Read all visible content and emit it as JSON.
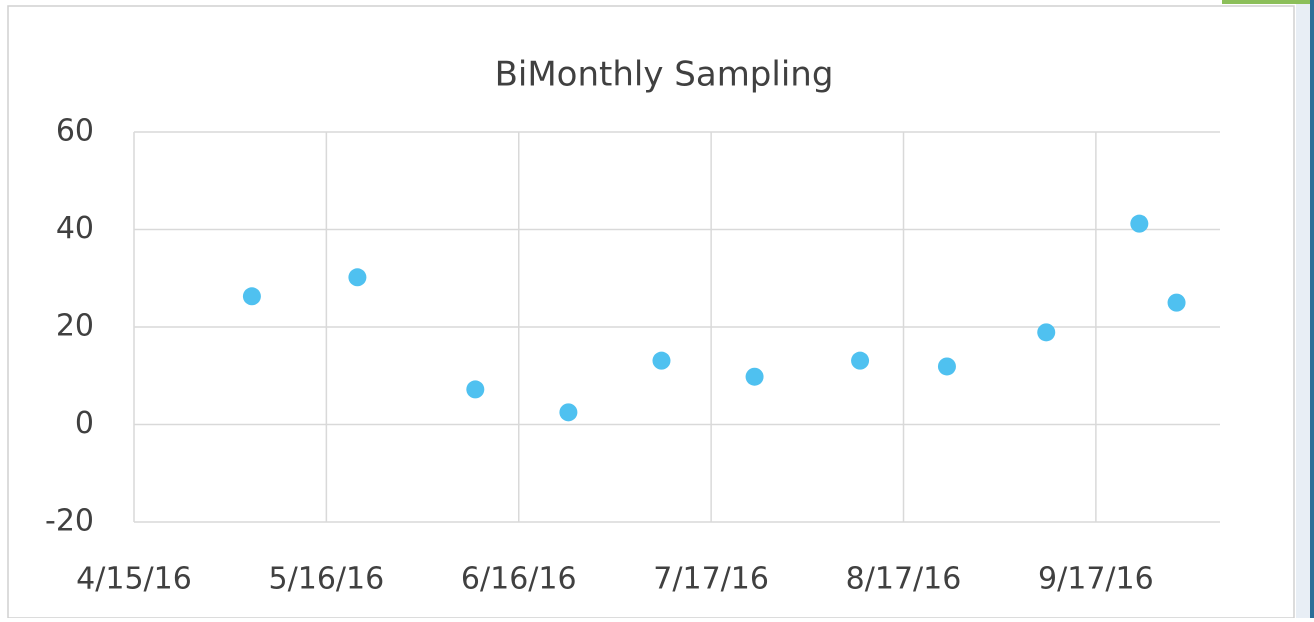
{
  "chart_data": {
    "type": "scatter",
    "title": "BiMonthly Sampling",
    "series": [
      {
        "color": "#4fc1f0",
        "x": [
          "5/4/16",
          "5/21/16",
          "6/9/16",
          "6/24/16",
          "7/9/16",
          "7/24/16",
          "8/10/16",
          "8/24/16",
          "9/9/16",
          "9/24/16",
          "9/30/16"
        ],
        "values": [
          26.3,
          30.2,
          7.2,
          2.5,
          13.1,
          9.8,
          13.1,
          11.9,
          18.9,
          41.2,
          25
        ]
      }
    ],
    "xlim": [
      "4/15/16",
      "10/7/16"
    ],
    "xticks": [
      "4/15/16",
      "5/16/16",
      "6/16/16",
      "7/17/16",
      "8/17/16",
      "9/17/16"
    ],
    "ylim": [
      -20,
      60
    ],
    "yticks": [
      -20,
      0,
      20,
      40,
      60
    ],
    "grid": true
  }
}
